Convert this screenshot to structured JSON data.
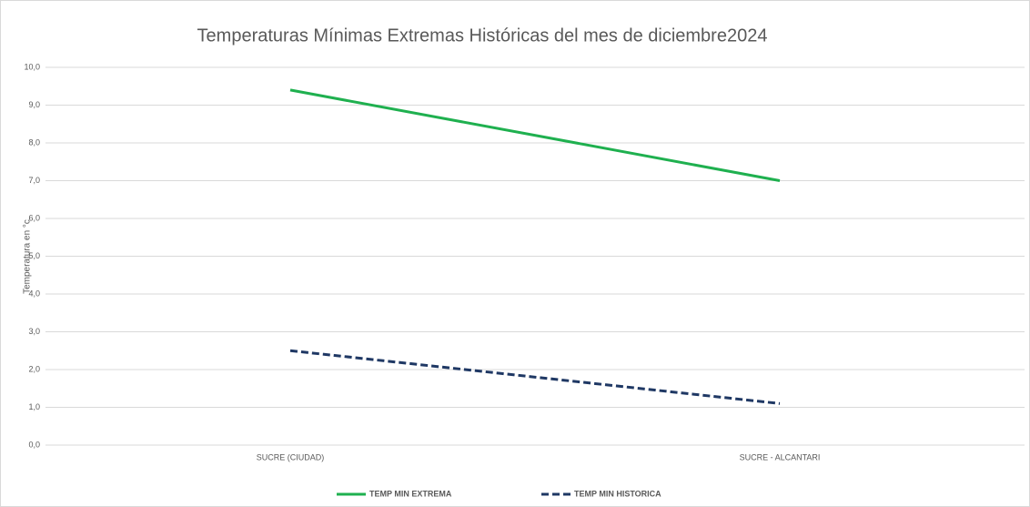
{
  "chart_data": {
    "type": "line",
    "title": "Temperaturas Mínimas Extremas Históricas del mes de diciembre2024",
    "y_label": "Temperatura en °c",
    "categories": [
      "SUCRE (CIUDAD)",
      "SUCRE - ALCANTARI"
    ],
    "series": [
      {
        "name": "TEMP MIN EXTREMA",
        "color": "#1fb04f",
        "dash": "solid",
        "values": [
          9.4,
          7.0
        ]
      },
      {
        "name": "TEMP MIN HISTORICA",
        "color": "#1f3864",
        "dash": "dashed",
        "values": [
          2.5,
          1.1
        ]
      }
    ],
    "ylim": [
      0,
      10
    ],
    "yticks": [
      {
        "value": 0,
        "label": "0,0"
      },
      {
        "value": 1,
        "label": "1,0"
      },
      {
        "value": 2,
        "label": "2,0"
      },
      {
        "value": 3,
        "label": "3,0"
      },
      {
        "value": 4,
        "label": "4,0"
      },
      {
        "value": 5,
        "label": "5,0"
      },
      {
        "value": 6,
        "label": "6,0"
      },
      {
        "value": 7,
        "label": "7,0"
      },
      {
        "value": 8,
        "label": "8,0"
      },
      {
        "value": 9,
        "label": "9,0"
      },
      {
        "value": 10,
        "label": "10,0"
      }
    ],
    "grid": true,
    "legend": "bottom"
  }
}
